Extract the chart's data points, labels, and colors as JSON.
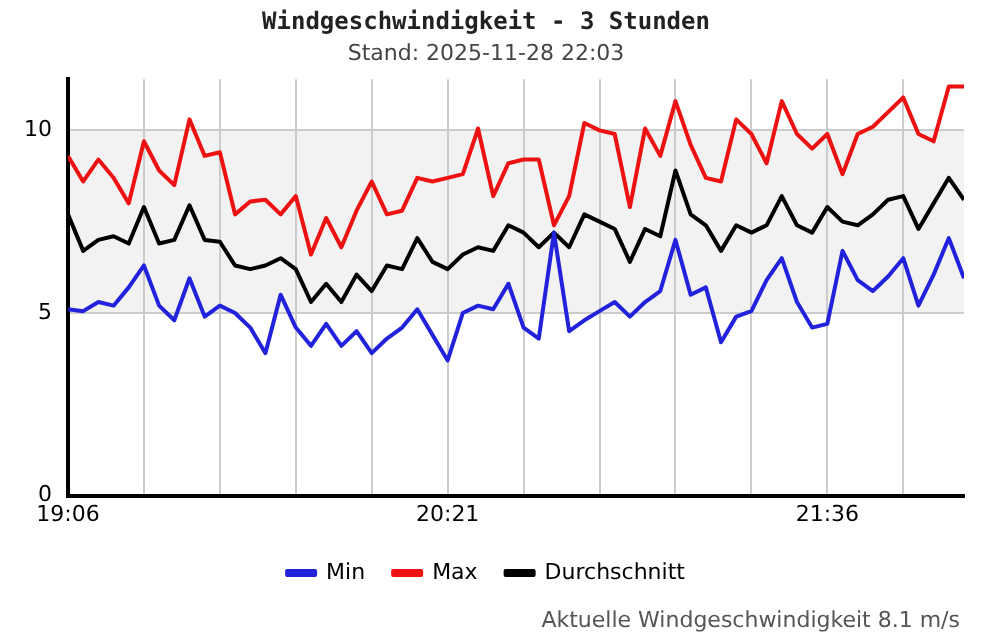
{
  "chart_data": {
    "type": "line",
    "title": "Windgeschwindigkeit - 3 Stunden",
    "subtitle": "Stand: 2025-11-28 22:03",
    "x": [
      19.1,
      19.15,
      19.2,
      19.25,
      19.3,
      19.35,
      19.4,
      19.45,
      19.5,
      19.55,
      19.6,
      19.65,
      19.7,
      19.75,
      19.8,
      19.85,
      19.9,
      19.95,
      20.0,
      20.05,
      20.1,
      20.15,
      20.2,
      20.25,
      20.3,
      20.35,
      20.4,
      20.45,
      20.5,
      20.55,
      20.6,
      20.65,
      20.7,
      20.75,
      20.8,
      20.85,
      20.9,
      20.95,
      21.0,
      21.05,
      21.1,
      21.15,
      21.2,
      21.25,
      21.3,
      21.35,
      21.4,
      21.45,
      21.5,
      21.55,
      21.6,
      21.65,
      21.7,
      21.75,
      21.8,
      21.85,
      21.9,
      21.95,
      22.0,
      22.05
    ],
    "series": [
      {
        "name": "Min",
        "color": "#2222dd",
        "values": [
          5.1,
          5.05,
          5.3,
          5.2,
          5.7,
          6.3,
          5.2,
          4.8,
          5.95,
          4.9,
          5.2,
          5.0,
          4.6,
          3.9,
          5.5,
          4.6,
          4.1,
          4.7,
          4.1,
          4.5,
          3.9,
          4.3,
          4.6,
          5.1,
          4.4,
          3.7,
          5.0,
          5.2,
          5.1,
          5.8,
          4.6,
          4.3,
          7.2,
          4.5,
          4.8,
          5.05,
          5.3,
          4.9,
          5.3,
          5.6,
          7.0,
          5.5,
          5.7,
          4.2,
          4.9,
          5.05,
          5.9,
          6.5,
          5.3,
          4.6,
          4.7,
          6.7,
          5.9,
          5.6,
          6.0,
          6.5,
          5.2,
          6.05,
          7.05,
          5.95
        ]
      },
      {
        "name": "Max",
        "color": "#ee1111",
        "values": [
          9.3,
          8.6,
          9.2,
          8.7,
          8.0,
          9.7,
          8.9,
          8.5,
          10.3,
          9.3,
          9.4,
          7.7,
          8.05,
          8.1,
          7.7,
          8.2,
          6.6,
          7.6,
          6.8,
          7.8,
          8.6,
          7.7,
          7.8,
          8.7,
          8.6,
          8.7,
          8.8,
          10.05,
          8.2,
          9.1,
          9.2,
          9.2,
          7.4,
          8.2,
          10.2,
          10.0,
          9.9,
          7.9,
          10.05,
          9.3,
          10.8,
          9.6,
          8.7,
          8.6,
          10.3,
          9.9,
          9.1,
          10.8,
          9.9,
          9.5,
          9.9,
          8.8,
          9.9,
          10.1,
          10.5,
          10.9,
          9.9,
          9.7,
          11.2,
          11.2
        ]
      },
      {
        "name": "Durchschnitt",
        "color": "#000000",
        "values": [
          7.7,
          6.7,
          7.0,
          7.1,
          6.9,
          7.9,
          6.9,
          7.0,
          7.95,
          7.0,
          6.95,
          6.3,
          6.2,
          6.3,
          6.5,
          6.2,
          5.3,
          5.8,
          5.3,
          6.05,
          5.6,
          6.3,
          6.2,
          7.05,
          6.4,
          6.2,
          6.6,
          6.8,
          6.7,
          7.4,
          7.2,
          6.8,
          7.2,
          6.8,
          7.7,
          7.5,
          7.3,
          6.4,
          7.3,
          7.1,
          8.9,
          7.7,
          7.4,
          6.7,
          7.4,
          7.2,
          7.4,
          8.2,
          7.4,
          7.2,
          7.9,
          7.5,
          7.4,
          7.7,
          8.1,
          8.2,
          7.3,
          8.0,
          8.7,
          8.1
        ]
      }
    ],
    "xlim": [
      19.1,
      22.05
    ],
    "xticks": [
      {
        "value": 19.1,
        "label": "19:06"
      },
      {
        "value": 19.35,
        "label": null
      },
      {
        "value": 19.6,
        "label": null
      },
      {
        "value": 19.85,
        "label": null
      },
      {
        "value": 20.1,
        "label": null
      },
      {
        "value": 20.35,
        "label": "20:21"
      },
      {
        "value": 20.6,
        "label": null
      },
      {
        "value": 20.85,
        "label": null
      },
      {
        "value": 21.1,
        "label": null
      },
      {
        "value": 21.35,
        "label": null
      },
      {
        "value": 21.6,
        "label": "21:36"
      },
      {
        "value": 21.85,
        "label": null
      }
    ],
    "ylim": [
      0,
      11.4
    ],
    "yticks": [
      0,
      5,
      10
    ],
    "bands": [
      {
        "axis": "y",
        "from": 5,
        "to": 10,
        "color": "#f2f2f2"
      }
    ],
    "grid": true,
    "legend": "bottom",
    "marker": "none",
    "line_style": "solid",
    "annotations": [
      "Aktuelle Windgeschwindigkeit 8.1 m/s"
    ]
  }
}
